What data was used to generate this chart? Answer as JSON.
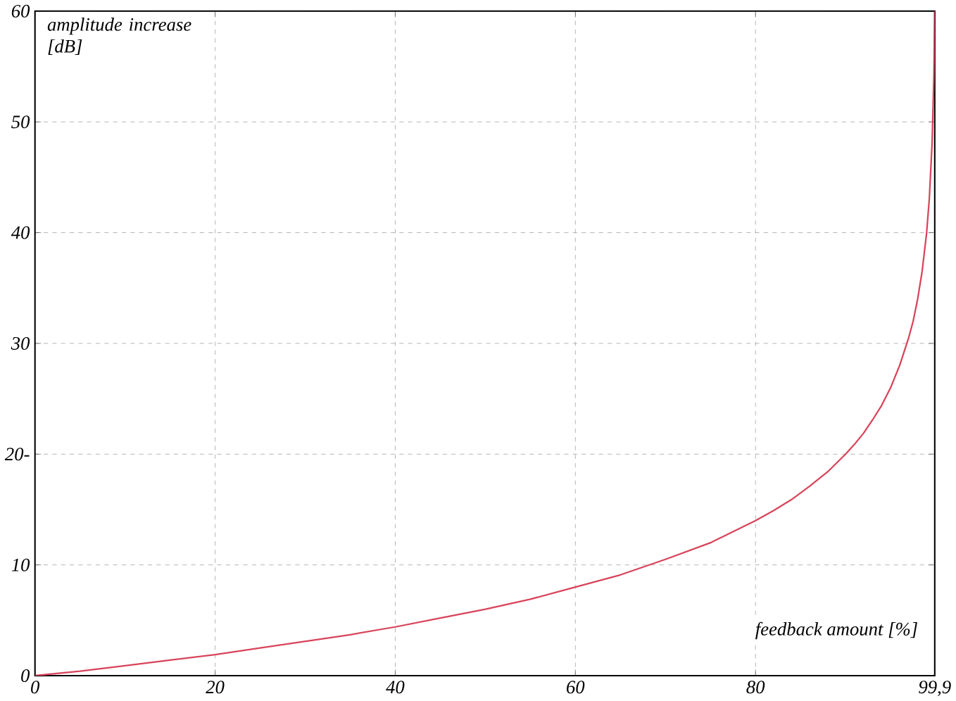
{
  "chart_data": {
    "type": "line",
    "xlabel": "feedback amount [%]",
    "ylabel": "amplitude increase [dB]",
    "x": [
      0,
      5,
      10,
      15,
      20,
      25,
      30,
      35,
      40,
      45,
      50,
      55,
      60,
      65,
      70,
      75,
      80,
      82,
      84,
      86,
      88,
      90,
      91,
      92,
      93,
      94,
      95,
      96,
      97,
      97.5,
      98,
      98.5,
      99,
      99.3,
      99.6,
      99.8,
      99.9
    ],
    "series": [
      {
        "color": "#d8445a",
        "values": [
          0,
          0.4,
          0.9,
          1.4,
          1.9,
          2.5,
          3.1,
          3.7,
          4.4,
          5.2,
          6.0,
          6.9,
          8.0,
          9.1,
          10.5,
          12.0,
          14.0,
          14.9,
          15.9,
          17.1,
          18.4,
          20.0,
          20.9,
          21.9,
          23.1,
          24.4,
          26.0,
          28.0,
          30.5,
          32.0,
          34.0,
          36.5,
          40.0,
          43.1,
          48.0,
          54.0,
          60.0
        ]
      }
    ],
    "xlim": [
      0,
      99.9
    ],
    "ylim": [
      0,
      60
    ],
    "xticks": [
      0,
      20,
      40,
      60,
      80,
      {
        "value": 99.9,
        "label": "99,9"
      }
    ],
    "yticks": [
      0,
      10,
      {
        "value": 20,
        "label": "20-"
      },
      30,
      40,
      50,
      60
    ],
    "grid": true,
    "marker": "none",
    "line_style": "solid"
  }
}
